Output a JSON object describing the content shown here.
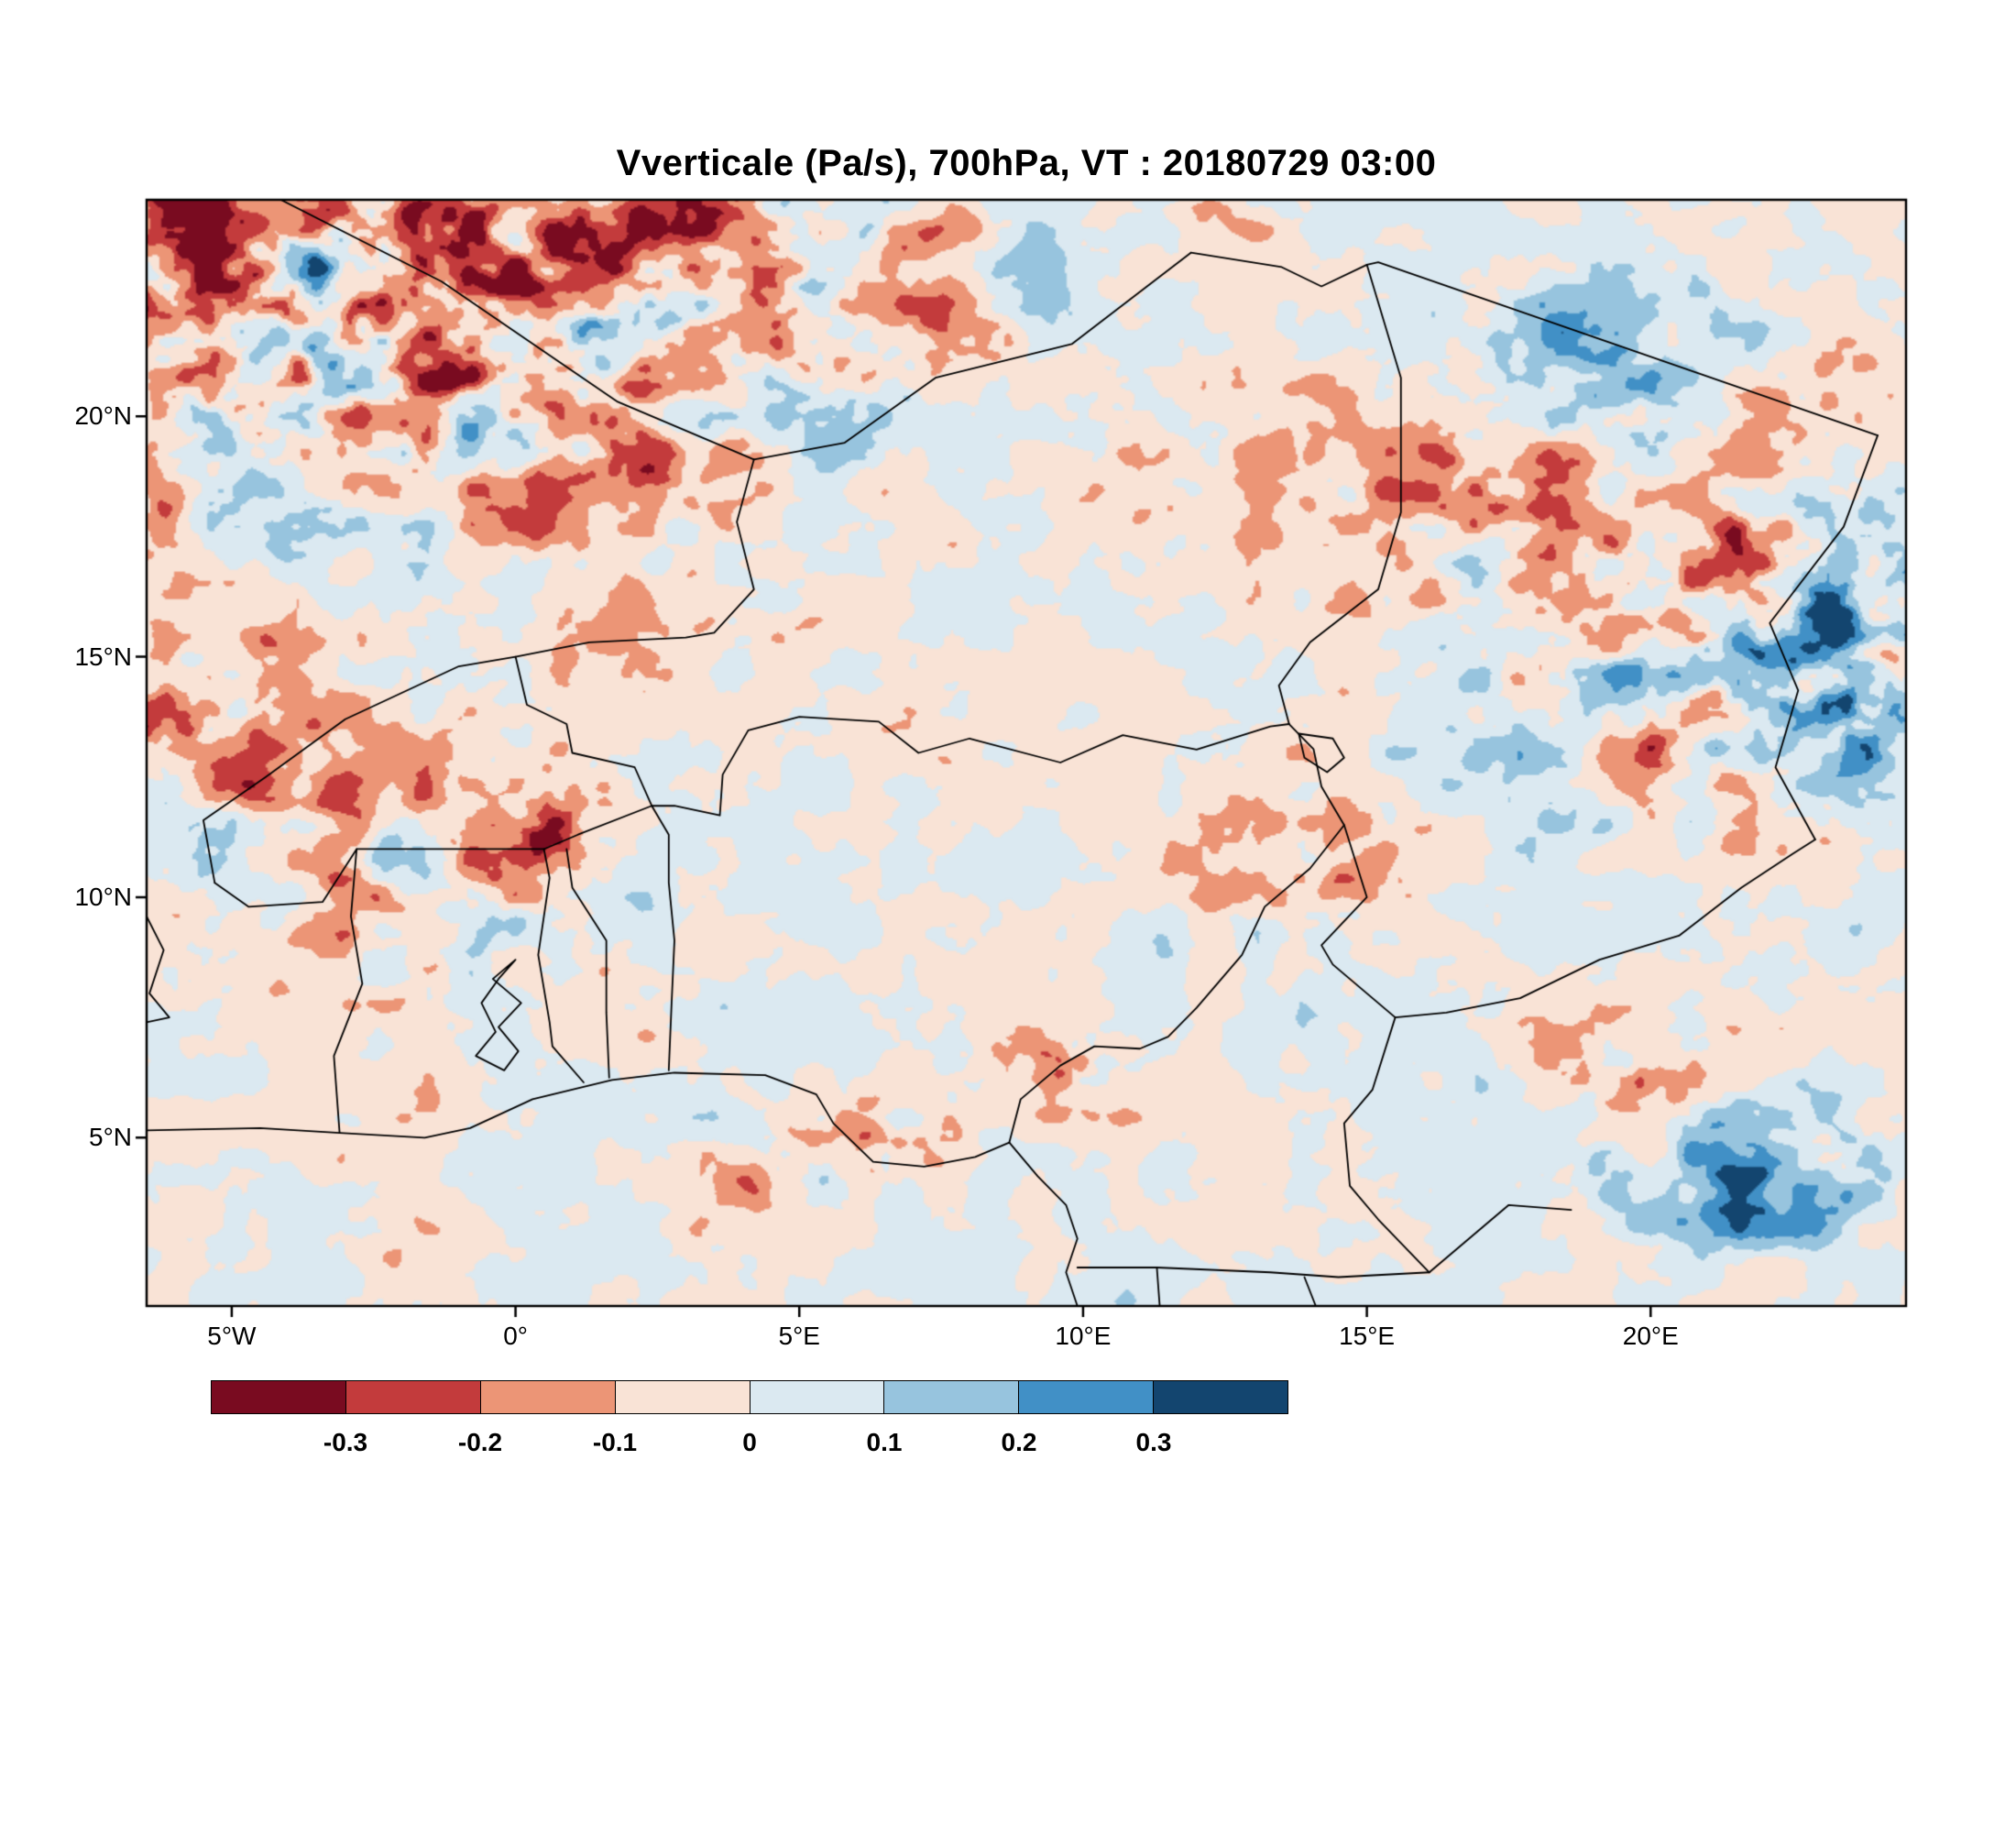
{
  "title": "Vverticale (Pa/s), 700hPa, VT : 20180729  03:00",
  "chart_data": {
    "type": "heatmap",
    "title": "Vverticale (Pa/s), 700hPa, VT : 20180729  03:00",
    "variable": "Vverticale",
    "units": "Pa/s",
    "pressure_level": "700hPa",
    "valid_time": "20180729 03:00",
    "lon_range": [
      -6.5,
      24.5
    ],
    "lat_range": [
      1.5,
      24.5
    ],
    "x_ticks": [
      {
        "lon": -5,
        "label": "5°W"
      },
      {
        "lon": 0,
        "label": "0°"
      },
      {
        "lon": 5,
        "label": "5°E"
      },
      {
        "lon": 10,
        "label": "10°E"
      },
      {
        "lon": 15,
        "label": "15°E"
      },
      {
        "lon": 20,
        "label": "20°E"
      }
    ],
    "y_ticks": [
      {
        "lat": 20,
        "label": "20°N"
      },
      {
        "lat": 15,
        "label": "15°N"
      },
      {
        "lat": 10,
        "label": "10°N"
      },
      {
        "lat": 5,
        "label": "5°N"
      }
    ],
    "colorbar": {
      "levels": [
        -0.3,
        -0.2,
        -0.1,
        0,
        0.1,
        0.2,
        0.3
      ],
      "labels": [
        "-0.3",
        "-0.2",
        "-0.1",
        "0",
        "0.1",
        "0.2",
        "0.3"
      ],
      "colors": [
        "#790b20",
        "#c33b3c",
        "#ec9576",
        "#f9e3d6",
        "#dbe9f1",
        "#97c4de",
        "#4190c6",
        "#13456f"
      ]
    },
    "field_model": {
      "seed": 1337,
      "seed2": 4242,
      "base_amp": 0.16,
      "features": [
        {
          "lon": -2.5,
          "lat": 22.5,
          "sx": 9.0,
          "sy": 4.5,
          "amp": 0.6,
          "bias": -0.12
        },
        {
          "lon": -5.5,
          "lat": 13.8,
          "sx": 2.2,
          "sy": 1.6,
          "amp": 0.35,
          "bias": -0.15
        },
        {
          "lon": -1.8,
          "lat": 10.2,
          "sx": 3.0,
          "sy": 2.2,
          "amp": 0.28,
          "bias": -0.08
        },
        {
          "lon": 0.4,
          "lat": 11.6,
          "sx": 1.3,
          "sy": 0.9,
          "amp": 0.3,
          "bias": -0.12
        },
        {
          "lon": 5.8,
          "lat": 4.6,
          "sx": 2.0,
          "sy": 1.0,
          "amp": 0.32,
          "bias": -0.2
        },
        {
          "lon": 9.6,
          "lat": 6.5,
          "sx": 0.9,
          "sy": 0.7,
          "amp": 0.45,
          "bias": -0.1
        },
        {
          "lon": 14.2,
          "lat": 10.2,
          "sx": 2.2,
          "sy": 1.8,
          "amp": 0.22,
          "bias": -0.1
        },
        {
          "lon": 16.5,
          "lat": 19.0,
          "sx": 2.6,
          "sy": 1.6,
          "amp": 0.2,
          "bias": -0.1
        },
        {
          "lon": 19.5,
          "lat": 21.5,
          "sx": 2.6,
          "sy": 1.8,
          "amp": 0.26,
          "bias": 0.1
        },
        {
          "lon": 21.5,
          "lat": 15.5,
          "sx": 5.0,
          "sy": 3.5,
          "amp": 0.45,
          "bias": -0.06
        },
        {
          "lon": 23.8,
          "lat": 14.5,
          "sx": 2.2,
          "sy": 2.3,
          "amp": 0.3,
          "bias": 0.22
        },
        {
          "lon": 21.8,
          "lat": 4.2,
          "sx": 2.8,
          "sy": 1.5,
          "amp": 0.3,
          "bias": 0.18
        },
        {
          "lon": 19.8,
          "lat": 6.0,
          "sx": 2.4,
          "sy": 1.4,
          "amp": 0.16,
          "bias": -0.07
        }
      ]
    },
    "map_borders": [
      {
        "name": "coastline-gulf-of-guinea",
        "points": [
          [
            -6.5,
            5.15
          ],
          [
            -4.5,
            5.2
          ],
          [
            -3.1,
            5.1
          ],
          [
            -1.6,
            5.0
          ],
          [
            -0.8,
            5.2
          ],
          [
            0.3,
            5.8
          ],
          [
            1.7,
            6.2
          ],
          [
            2.8,
            6.35
          ],
          [
            4.4,
            6.3
          ],
          [
            5.3,
            5.9
          ],
          [
            5.6,
            5.3
          ],
          [
            6.3,
            4.5
          ],
          [
            7.2,
            4.4
          ],
          [
            8.1,
            4.6
          ],
          [
            8.7,
            4.9
          ],
          [
            9.2,
            4.2
          ],
          [
            9.7,
            3.6
          ],
          [
            9.9,
            2.9
          ],
          [
            9.7,
            2.2
          ],
          [
            9.9,
            1.5
          ]
        ]
      },
      {
        "name": "ivorycoast-ghana-border",
        "points": [
          [
            -3.1,
            5.1
          ],
          [
            -3.2,
            6.7
          ],
          [
            -2.7,
            8.2
          ],
          [
            -2.9,
            9.6
          ],
          [
            -2.8,
            11.0
          ]
        ]
      },
      {
        "name": "burkina-north-border",
        "points": [
          [
            -5.3,
            10.3
          ],
          [
            -5.5,
            11.6
          ],
          [
            -4.4,
            12.5
          ],
          [
            -3.0,
            13.7
          ],
          [
            -1.0,
            14.8
          ],
          [
            0.0,
            15.0
          ],
          [
            0.2,
            14.0
          ],
          [
            0.9,
            13.6
          ],
          [
            1.0,
            13.0
          ],
          [
            2.1,
            12.7
          ],
          [
            2.4,
            11.9
          ]
        ]
      },
      {
        "name": "burkina-south-border",
        "points": [
          [
            -5.3,
            10.3
          ],
          [
            -4.7,
            9.8
          ],
          [
            -3.4,
            9.9
          ],
          [
            -2.8,
            11.0
          ],
          [
            -1.0,
            11.0
          ],
          [
            0.5,
            11.0
          ],
          [
            1.1,
            11.3
          ],
          [
            2.4,
            11.9
          ]
        ]
      },
      {
        "name": "ghana-togo-border",
        "points": [
          [
            0.5,
            11.0
          ],
          [
            0.6,
            10.4
          ],
          [
            0.4,
            8.8
          ],
          [
            0.6,
            7.4
          ],
          [
            0.65,
            6.9
          ],
          [
            1.2,
            6.15
          ]
        ]
      },
      {
        "name": "togo-benin-border",
        "points": [
          [
            0.9,
            11.0
          ],
          [
            1.0,
            10.2
          ],
          [
            1.6,
            9.1
          ],
          [
            1.6,
            7.6
          ],
          [
            1.65,
            6.25
          ]
        ]
      },
      {
        "name": "benin-nigeria-border",
        "points": [
          [
            2.4,
            11.9
          ],
          [
            2.7,
            11.3
          ],
          [
            2.7,
            10.3
          ],
          [
            2.8,
            9.1
          ],
          [
            2.75,
            7.8
          ],
          [
            2.7,
            6.4
          ]
        ]
      },
      {
        "name": "niger-nigeria-border",
        "points": [
          [
            2.4,
            11.9
          ],
          [
            2.8,
            11.9
          ],
          [
            3.6,
            11.7
          ],
          [
            3.65,
            12.55
          ],
          [
            4.1,
            13.47
          ],
          [
            5.0,
            13.75
          ],
          [
            6.4,
            13.65
          ],
          [
            7.1,
            13.0
          ],
          [
            8.0,
            13.3
          ],
          [
            9.6,
            12.8
          ],
          [
            10.7,
            13.37
          ],
          [
            12.0,
            13.07
          ],
          [
            13.3,
            13.55
          ],
          [
            13.63,
            13.6
          ]
        ]
      },
      {
        "name": "mali-niger-border",
        "points": [
          [
            0.0,
            15.0
          ],
          [
            1.3,
            15.3
          ],
          [
            3.0,
            15.4
          ],
          [
            3.5,
            15.5
          ],
          [
            4.2,
            16.4
          ],
          [
            3.9,
            17.8
          ],
          [
            4.2,
            19.1
          ]
        ]
      },
      {
        "name": "algeria-niger-border",
        "points": [
          [
            4.2,
            19.1
          ],
          [
            5.8,
            19.45
          ],
          [
            7.4,
            20.8
          ],
          [
            9.8,
            21.5
          ],
          [
            11.9,
            23.4
          ]
        ]
      },
      {
        "name": "libya-niger-chad-border",
        "points": [
          [
            11.9,
            23.4
          ],
          [
            13.5,
            23.1
          ],
          [
            14.2,
            22.7
          ],
          [
            15.0,
            23.15
          ],
          [
            15.2,
            23.2
          ],
          [
            24.0,
            19.6
          ]
        ]
      },
      {
        "name": "niger-chad-border",
        "points": [
          [
            13.63,
            13.6
          ],
          [
            13.45,
            14.4
          ],
          [
            14.0,
            15.3
          ],
          [
            15.2,
            16.4
          ],
          [
            15.6,
            18.0
          ],
          [
            15.6,
            20.8
          ],
          [
            15.0,
            23.15
          ]
        ]
      },
      {
        "name": "nigeria-cameroon-border",
        "points": [
          [
            8.7,
            4.9
          ],
          [
            8.9,
            5.8
          ],
          [
            9.6,
            6.5
          ],
          [
            10.2,
            6.9
          ],
          [
            11.0,
            6.85
          ],
          [
            11.5,
            7.1
          ],
          [
            12.0,
            7.7
          ],
          [
            12.8,
            8.8
          ],
          [
            13.2,
            9.8
          ],
          [
            14.0,
            10.6
          ],
          [
            14.6,
            11.5
          ],
          [
            14.2,
            12.3
          ],
          [
            14.06,
            13.08
          ],
          [
            13.63,
            13.6
          ]
        ]
      },
      {
        "name": "chad-south-border",
        "points": [
          [
            14.6,
            11.5
          ],
          [
            15.0,
            10.0
          ],
          [
            14.2,
            9.0
          ],
          [
            14.4,
            8.6
          ],
          [
            15.5,
            7.5
          ],
          [
            16.4,
            7.6
          ],
          [
            17.7,
            7.9
          ],
          [
            19.1,
            8.7
          ],
          [
            20.5,
            9.2
          ],
          [
            21.6,
            10.2
          ],
          [
            22.5,
            10.9
          ],
          [
            22.9,
            11.2
          ]
        ]
      },
      {
        "name": "chad-sudan-border",
        "points": [
          [
            24.0,
            19.6
          ],
          [
            23.4,
            17.7
          ],
          [
            22.1,
            15.7
          ],
          [
            22.6,
            14.3
          ],
          [
            22.2,
            12.7
          ],
          [
            22.9,
            11.2
          ]
        ]
      },
      {
        "name": "cameroon-car-border",
        "points": [
          [
            15.5,
            7.5
          ],
          [
            15.1,
            6.0
          ],
          [
            14.6,
            5.3
          ],
          [
            14.7,
            4.0
          ],
          [
            15.2,
            3.3
          ],
          [
            16.1,
            2.2
          ]
        ]
      },
      {
        "name": "cameroon-gabon-congo-border",
        "points": [
          [
            9.9,
            2.3
          ],
          [
            11.3,
            2.3
          ],
          [
            13.3,
            2.2
          ],
          [
            14.5,
            2.1
          ],
          [
            16.1,
            2.2
          ]
        ]
      },
      {
        "name": "eqguinea-gabon-border",
        "points": [
          [
            11.3,
            2.3
          ],
          [
            11.35,
            1.5
          ]
        ]
      },
      {
        "name": "gabon-congo-border",
        "points": [
          [
            13.9,
            2.1
          ],
          [
            14.1,
            1.5
          ]
        ]
      },
      {
        "name": "car-congo-border",
        "points": [
          [
            16.1,
            2.2
          ],
          [
            17.5,
            3.6
          ],
          [
            18.6,
            3.5
          ]
        ]
      },
      {
        "name": "mali-algeria-border",
        "points": [
          [
            -6.1,
            25.0
          ],
          [
            -4.8,
            24.9
          ],
          [
            -1.3,
            22.8
          ],
          [
            1.8,
            20.3
          ],
          [
            4.2,
            19.1
          ]
        ]
      },
      {
        "name": "ivorycoast-guinea-border",
        "points": [
          [
            -6.5,
            9.6
          ],
          [
            -6.2,
            8.9
          ],
          [
            -6.45,
            8.0
          ],
          [
            -6.1,
            7.5
          ],
          [
            -6.5,
            7.4
          ]
        ]
      },
      {
        "name": "lake-volta",
        "closed": true,
        "points": [
          [
            -0.2,
            6.4
          ],
          [
            0.05,
            6.8
          ],
          [
            -0.3,
            7.3
          ],
          [
            0.1,
            7.8
          ],
          [
            -0.4,
            8.3
          ],
          [
            0.0,
            8.7
          ],
          [
            -0.3,
            8.3
          ],
          [
            -0.6,
            7.8
          ],
          [
            -0.35,
            7.2
          ],
          [
            -0.7,
            6.7
          ]
        ]
      },
      {
        "name": "lake-chad",
        "closed": true,
        "points": [
          [
            13.8,
            13.4
          ],
          [
            14.4,
            13.3
          ],
          [
            14.6,
            12.9
          ],
          [
            14.3,
            12.6
          ],
          [
            13.9,
            12.9
          ]
        ]
      }
    ]
  }
}
